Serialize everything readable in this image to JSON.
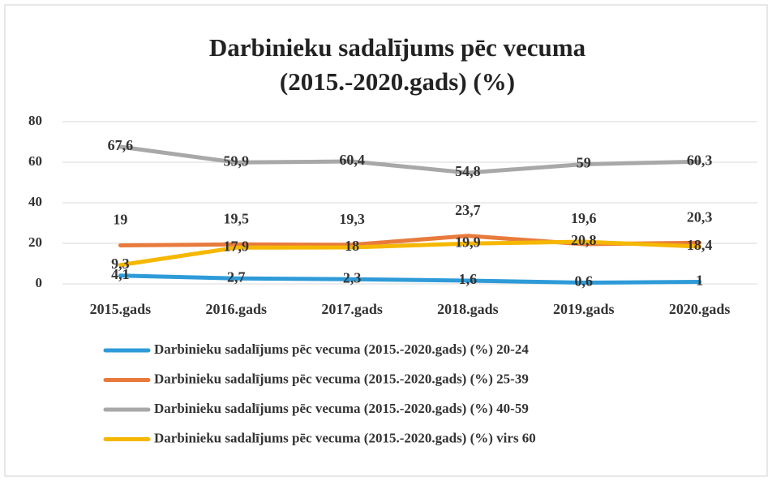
{
  "chart_data": {
    "type": "line",
    "title": "Darbinieku sadalījums pēc vecuma (2015.-2020.gads) (%)",
    "categories": [
      "2015.gads",
      "2016.gads",
      "2017.gads",
      "2018.gads",
      "2019.gads",
      "2020.gads"
    ],
    "series": [
      {
        "name": "Darbinieku sadalījums pēc vecuma (2015.-2020.gads) (%) 20-24",
        "color": "#2e9bd8",
        "values": [
          4.1,
          2.7,
          2.3,
          1.6,
          0.6,
          1
        ],
        "value_labels": [
          "4,1",
          "2,7",
          "2,3",
          "1,6",
          "0,6",
          "1"
        ]
      },
      {
        "name": "Darbinieku sadalījums pēc vecuma (2015.-2020.gads) (%) 25-39",
        "color": "#e87b3c",
        "values": [
          19,
          19.5,
          19.3,
          23.7,
          19.6,
          20.3
        ],
        "value_labels": [
          "19",
          "19,5",
          "19,3",
          "23,7",
          "19,6",
          "20,3"
        ]
      },
      {
        "name": "Darbinieku sadalījums pēc vecuma (2015.-2020.gads) (%) 40-59",
        "color": "#a8a8a8",
        "values": [
          67.6,
          59.9,
          60.4,
          54.8,
          59,
          60.3
        ],
        "value_labels": [
          "67,6",
          "59,9",
          "60,4",
          "54,8",
          "59",
          "60,3"
        ]
      },
      {
        "name": "Darbinieku sadalījums pēc vecuma (2015.-2020.gads) (%) virs 60",
        "color": "#f5b700",
        "values": [
          9.3,
          17.9,
          18,
          19.9,
          20.8,
          18.4
        ],
        "value_labels": [
          "9,3",
          "17,9",
          "18",
          "19,9",
          "20,8",
          "18,4"
        ]
      }
    ],
    "ylim": [
      0,
      80
    ],
    "yticks": [
      0,
      20,
      40,
      60,
      80
    ],
    "grid": true,
    "legend": "bottom"
  }
}
